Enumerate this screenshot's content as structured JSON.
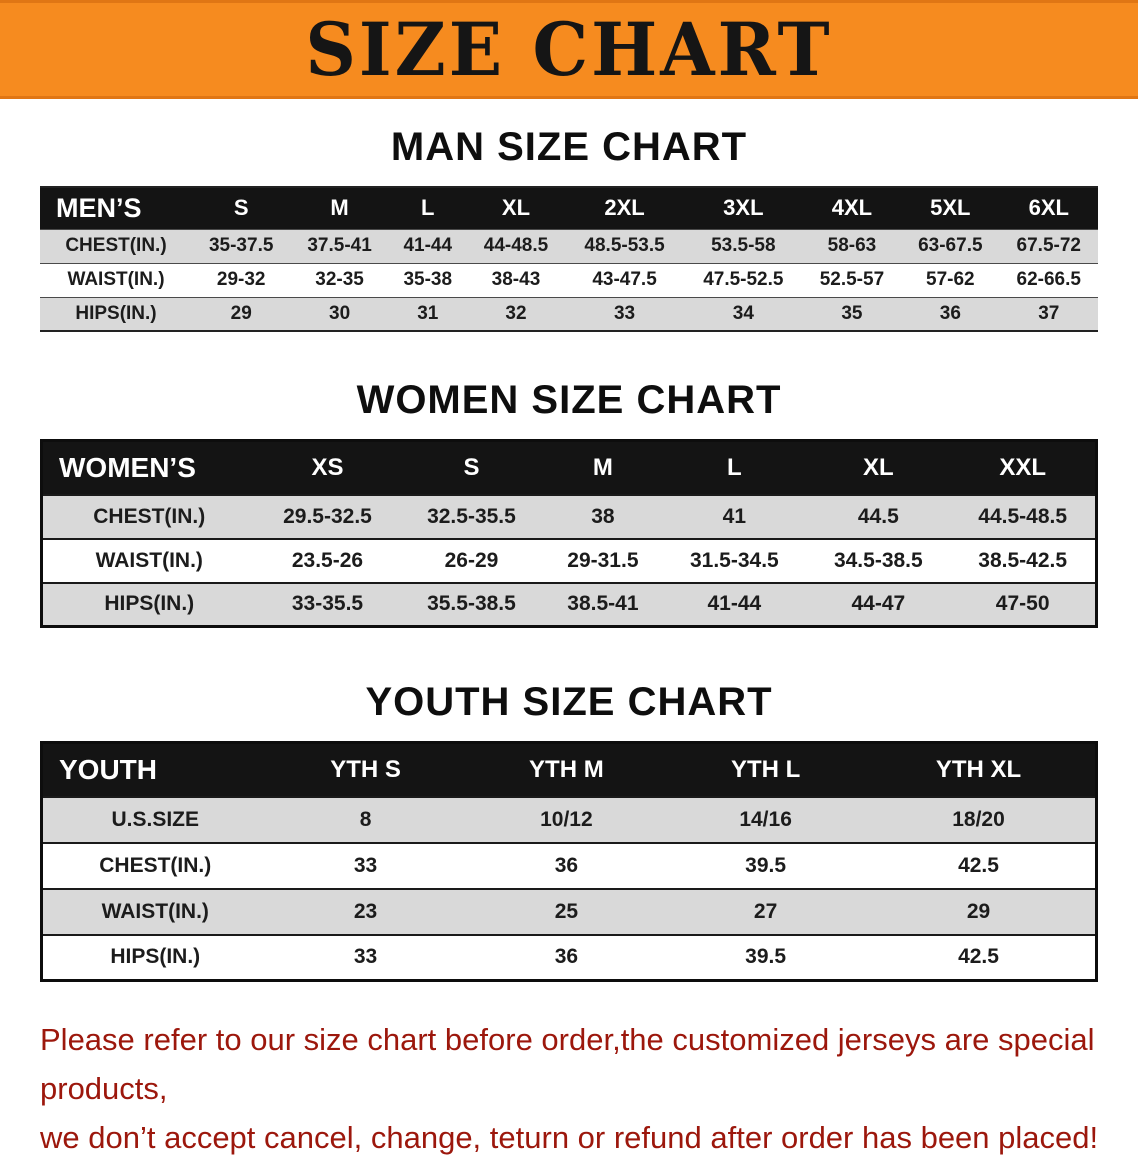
{
  "banner": {
    "title": "SIZE CHART"
  },
  "sections": [
    {
      "id": "men",
      "title": "MAN SIZE CHART",
      "header": [
        "MEN’S",
        "S",
        "M",
        "L",
        "XL",
        "2XL",
        "3XL",
        "4XL",
        "5XL",
        "6XL"
      ],
      "rows": [
        [
          "CHEST(IN.)",
          "35-37.5",
          "37.5-41",
          "41-44",
          "44-48.5",
          "48.5-53.5",
          "53.5-58",
          "58-63",
          "63-67.5",
          "67.5-72"
        ],
        [
          "WAIST(IN.)",
          "29-32",
          "32-35",
          "35-38",
          "38-43",
          "43-47.5",
          "47.5-52.5",
          "52.5-57",
          "57-62",
          "62-66.5"
        ],
        [
          "HIPS(IN.)",
          "29",
          "30",
          "31",
          "32",
          "33",
          "34",
          "35",
          "36",
          "37"
        ]
      ]
    },
    {
      "id": "women",
      "title": "WOMEN SIZE CHART",
      "header": [
        "WOMEN’S",
        "XS",
        "S",
        "M",
        "L",
        "XL",
        "XXL"
      ],
      "rows": [
        [
          "CHEST(IN.)",
          "29.5-32.5",
          "32.5-35.5",
          "38",
          "41",
          "44.5",
          "44.5-48.5"
        ],
        [
          "WAIST(IN.)",
          "23.5-26",
          "26-29",
          "29-31.5",
          "31.5-34.5",
          "34.5-38.5",
          "38.5-42.5"
        ],
        [
          "HIPS(IN.)",
          "33-35.5",
          "35.5-38.5",
          "38.5-41",
          "41-44",
          "44-47",
          "47-50"
        ]
      ]
    },
    {
      "id": "youth",
      "title": "YOUTH SIZE CHART",
      "header": [
        "YOUTH",
        "YTH S",
        "YTH M",
        "YTH L",
        "YTH XL"
      ],
      "rows": [
        [
          "U.S.SIZE",
          "8",
          "10/12",
          "14/16",
          "18/20"
        ],
        [
          "CHEST(IN.)",
          "33",
          "36",
          "39.5",
          "42.5"
        ],
        [
          "WAIST(IN.)",
          "23",
          "25",
          "27",
          "29"
        ],
        [
          "HIPS(IN.)",
          "33",
          "36",
          "39.5",
          "42.5"
        ]
      ]
    }
  ],
  "footer": {
    "line1": "Please refer to our size chart before order,the customized jerseys are special products,",
    "line2": "we don’t accept cancel, change, teturn or refund after order has been placed!"
  },
  "colors": {
    "banner_bg": "#f68b1f",
    "header_bg": "#141414",
    "row_shaded": "#d9d9d9",
    "footer_text": "#9c170c"
  }
}
